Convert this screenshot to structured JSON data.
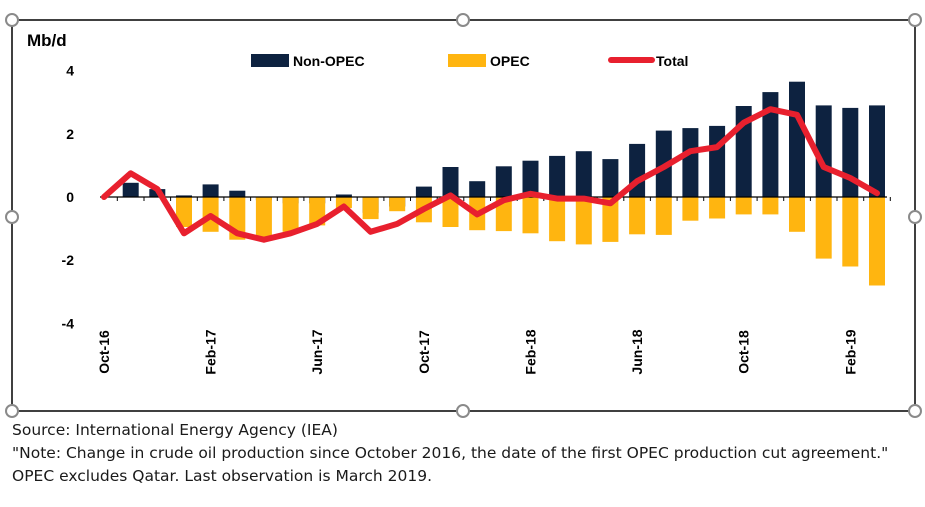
{
  "chart_data": {
    "type": "bar",
    "title": "",
    "ylabel": "Mb/d",
    "xlabel": "",
    "ylim": [
      -4,
      4
    ],
    "yticks": [
      4,
      2,
      0,
      -2,
      -4
    ],
    "categories": [
      "Oct-16",
      "Nov-16",
      "Dec-16",
      "Jan-17",
      "Feb-17",
      "Mar-17",
      "Apr-17",
      "May-17",
      "Jun-17",
      "Jul-17",
      "Aug-17",
      "Sep-17",
      "Oct-17",
      "Nov-17",
      "Dec-17",
      "Jan-18",
      "Feb-18",
      "Mar-18",
      "Apr-18",
      "May-18",
      "Jun-18",
      "Jul-18",
      "Aug-18",
      "Sep-18",
      "Oct-18",
      "Nov-18",
      "Dec-18",
      "Jan-19",
      "Feb-19",
      "Mar-19"
    ],
    "xtick_labels": [
      "Oct-16",
      "",
      "",
      "",
      "Feb-17",
      "",
      "",
      "",
      "Jun-17",
      "",
      "",
      "",
      "Oct-17",
      "",
      "",
      "",
      "Feb-18",
      "",
      "",
      "",
      "Jun-18",
      "",
      "",
      "",
      "Oct-18",
      "",
      "",
      "",
      "Feb-19",
      ""
    ],
    "grid": false,
    "legend_position": "top",
    "series": [
      {
        "name": "Non-OPEC",
        "type": "bar",
        "color": "#0d2240",
        "values": [
          0,
          0.45,
          0.25,
          0.05,
          0.4,
          0.2,
          -0.1,
          -0.2,
          -0.2,
          0.08,
          -0.5,
          -0.3,
          0.33,
          0.95,
          0.5,
          0.97,
          1.15,
          1.3,
          1.45,
          1.2,
          1.68,
          2.1,
          2.18,
          2.25,
          2.88,
          3.32,
          3.65,
          2.9,
          2.82,
          2.9
        ]
      },
      {
        "name": "OPEC",
        "type": "bar",
        "color": "#ffb510",
        "values": [
          0,
          0,
          0,
          -0.95,
          -1.1,
          -1.35,
          -1.3,
          -1.1,
          -0.9,
          -0.35,
          -0.7,
          -0.45,
          -0.8,
          -0.95,
          -1.05,
          -1.08,
          -1.15,
          -1.4,
          -1.5,
          -1.42,
          -1.18,
          -1.2,
          -0.75,
          -0.68,
          -0.55,
          -0.55,
          -1.1,
          -1.95,
          -2.2,
          -2.8
        ]
      },
      {
        "name": "Total",
        "type": "line",
        "color": "#e8202e",
        "values": [
          0,
          0.75,
          0.25,
          -1.15,
          -0.6,
          -1.15,
          -1.35,
          -1.15,
          -0.85,
          -0.3,
          -1.1,
          -0.85,
          -0.38,
          0.05,
          -0.55,
          -0.1,
          0.1,
          -0.05,
          -0.05,
          -0.2,
          0.5,
          0.95,
          1.45,
          1.58,
          2.35,
          2.78,
          2.6,
          0.95,
          0.6,
          0.12
        ]
      }
    ]
  },
  "notes": {
    "source": "Source: International Energy Agency (IEA)",
    "note": "\"Note: Change in crude oil production since October 2016, the date of the first OPEC production cut agreement.\"",
    "opec": "OPEC excludes Qatar. Last observation is March 2019."
  }
}
